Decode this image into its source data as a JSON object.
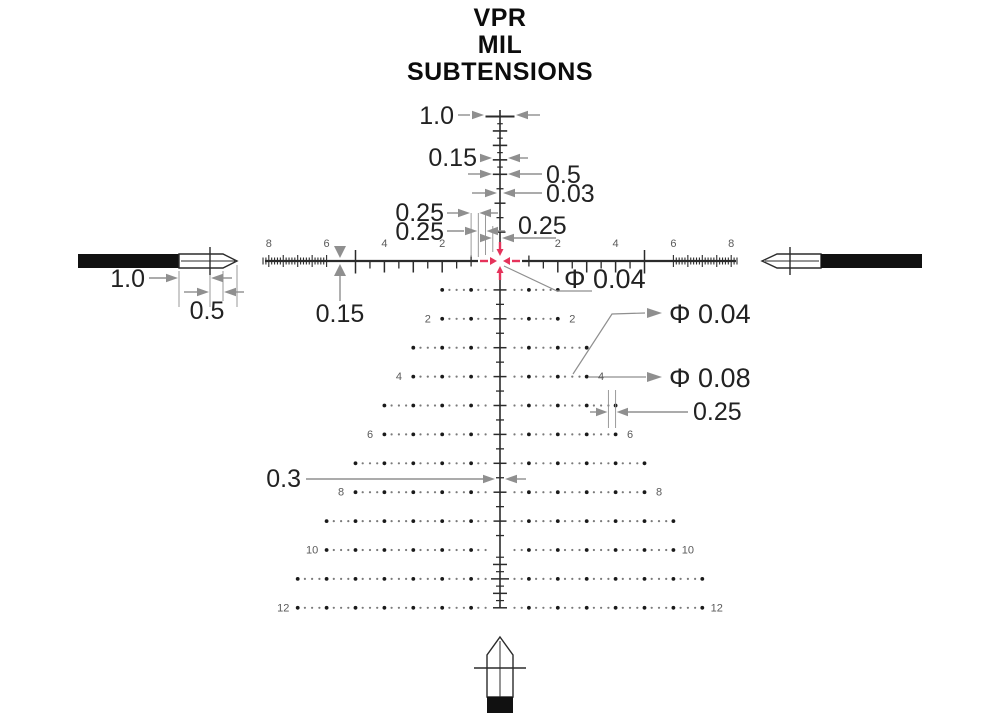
{
  "title": {
    "line1": "VPR",
    "line2": "MIL",
    "line3": "SUBTENSIONS"
  },
  "colors": {
    "accent_red": "#e5335b",
    "dim_gray": "#8f8f8f",
    "line_dark": "#2b2b2b",
    "dot_small": "#7a7a7a",
    "dot_large": "#1a1a1a",
    "label_gray": "#5a5a5a"
  },
  "annotations": {
    "post_top_tick_width": "1.0",
    "post_small_tick": "0.15",
    "post_half_tick": "0.5",
    "post_stroke": "0.03",
    "quarter_1": "0.25",
    "quarter_2": "0.25",
    "quarter_3": "0.25",
    "center_dot_dia": "Φ 0.04",
    "tree_small_dot_dia": "Φ 0.04",
    "tree_large_dot_dia": "Φ 0.08",
    "tree_dot_spacing": "0.25",
    "bottom_half_tick": "0.3",
    "main_line_thickness": "0.15",
    "arrow_body_length": "1.0",
    "arrow_tip_length": "0.5"
  },
  "scale": {
    "left": [
      "8",
      "6",
      "4",
      "2"
    ],
    "right": [
      "2",
      "4",
      "6",
      "8"
    ]
  },
  "tree": {
    "labels": [
      "2",
      "4",
      "6",
      "8",
      "10",
      "12"
    ]
  },
  "reticle": {
    "units": "MIL",
    "dot_spacing_mil": 0.25,
    "small_dot_diameter_mil": 0.04,
    "large_dot_diameter_mil": 0.08,
    "horizontal_scale": {
      "numbered_mils": [
        2,
        4,
        6,
        8
      ],
      "half_tick_mils": [
        1.5,
        2.5,
        3.5,
        4.5
      ],
      "integer_tick_mils": [
        2,
        3,
        4
      ],
      "tall_cross_mils": [
        5
      ],
      "small_cross_mils": [
        1
      ],
      "fine_comb": {
        "from": 6.0,
        "to": 8.2,
        "step": 0.1
      }
    },
    "post_ladder": {
      "from": 3.25,
      "to": 4.75,
      "step": 0.25,
      "top_tick_mil": 5
    },
    "bottom_ladder": {
      "from": 10.25,
      "to": 12.0,
      "step": 0.25
    },
    "elevation_rows": [
      {
        "mil": 1,
        "half_width_mil": 2
      },
      {
        "mil": 2,
        "half_width_mil": 2,
        "label": "2"
      },
      {
        "mil": 3,
        "half_width_mil": 3
      },
      {
        "mil": 4,
        "half_width_mil": 3,
        "label": "4"
      },
      {
        "mil": 5,
        "half_width_mil": 4
      },
      {
        "mil": 6,
        "half_width_mil": 4,
        "label": "6"
      },
      {
        "mil": 7,
        "half_width_mil": 5
      },
      {
        "mil": 8,
        "half_width_mil": 5,
        "label": "8"
      },
      {
        "mil": 9,
        "half_width_mil": 6
      },
      {
        "mil": 10,
        "half_width_mil": 6,
        "label": "10"
      },
      {
        "mil": 11,
        "half_width_mil": 7
      },
      {
        "mil": 12,
        "half_width_mil": 7,
        "label": "12"
      }
    ]
  }
}
